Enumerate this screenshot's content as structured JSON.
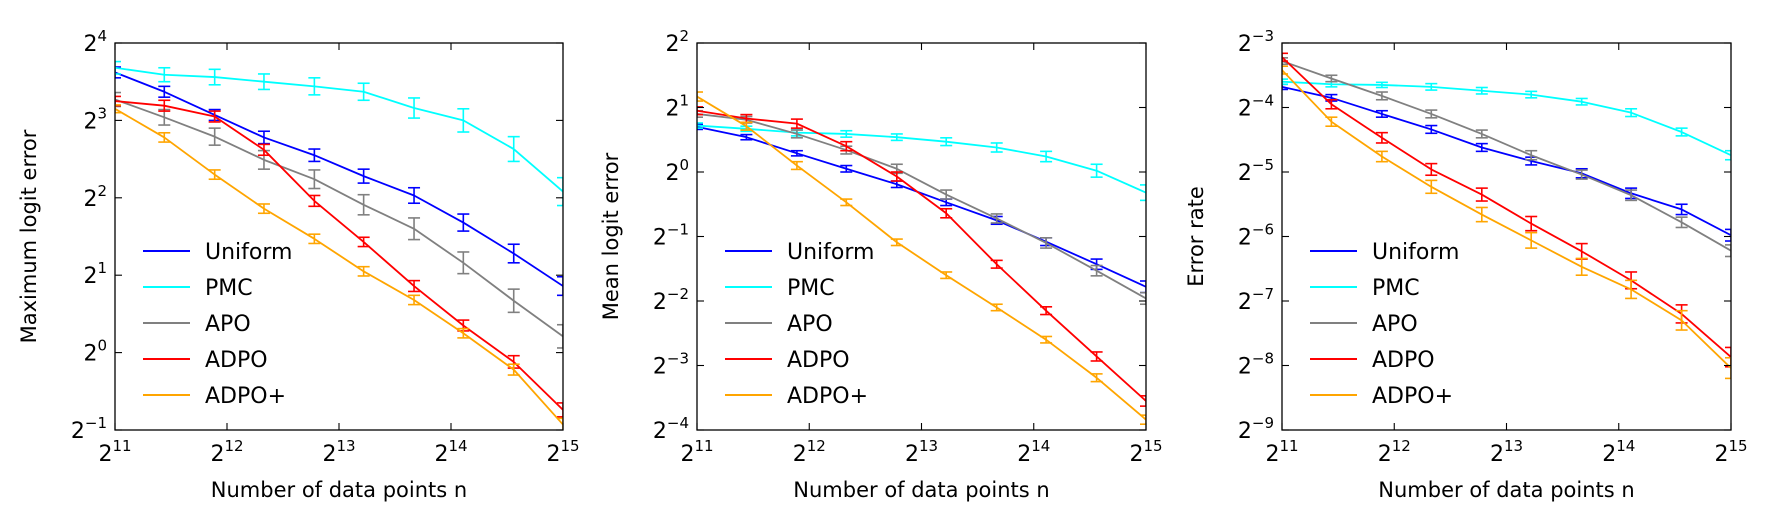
{
  "chart_data": [
    {
      "type": "line",
      "ylabel": "Maximum logit error",
      "xlabel": "Number of data points n",
      "x_scale": "log2",
      "y_scale": "log2",
      "xlim": [
        11,
        15
      ],
      "ylim": [
        -1,
        4
      ],
      "x_ticks": [
        11,
        12,
        13,
        14,
        15
      ],
      "y_ticks": [
        -1,
        0,
        1,
        2,
        3,
        4
      ],
      "x": [
        11.0,
        11.44,
        11.89,
        12.33,
        12.78,
        13.22,
        13.67,
        14.11,
        14.56,
        15.0
      ],
      "legend_position": "lower-left",
      "series": [
        {
          "name": "Uniform",
          "color": "#0000ff",
          "values": [
            3.62,
            3.37,
            3.07,
            2.78,
            2.55,
            2.28,
            2.03,
            1.68,
            1.28,
            0.86
          ],
          "err": [
            0.07,
            0.07,
            0.07,
            0.08,
            0.08,
            0.09,
            0.1,
            0.11,
            0.12,
            0.12
          ]
        },
        {
          "name": "PMC",
          "color": "#00ffff",
          "values": [
            3.68,
            3.59,
            3.56,
            3.5,
            3.44,
            3.37,
            3.16,
            3.0,
            2.63,
            2.08
          ],
          "err": [
            0.08,
            0.09,
            0.1,
            0.1,
            0.11,
            0.11,
            0.13,
            0.15,
            0.16,
            0.18
          ]
        },
        {
          "name": "APO",
          "color": "#808080",
          "values": [
            3.27,
            3.04,
            2.79,
            2.49,
            2.24,
            1.91,
            1.6,
            1.16,
            0.67,
            0.21
          ],
          "err": [
            0.09,
            0.1,
            0.11,
            0.12,
            0.12,
            0.13,
            0.14,
            0.14,
            0.15,
            0.15
          ]
        },
        {
          "name": "ADPO",
          "color": "#ff0000",
          "values": [
            3.25,
            3.19,
            3.05,
            2.62,
            1.96,
            1.43,
            0.86,
            0.35,
            -0.12,
            -0.74
          ],
          "err": [
            0.06,
            0.07,
            0.07,
            0.07,
            0.07,
            0.06,
            0.07,
            0.07,
            0.08,
            0.09
          ]
        },
        {
          "name": "ADPO+",
          "color": "#ffa500",
          "values": [
            3.15,
            2.78,
            2.3,
            1.86,
            1.47,
            1.05,
            0.68,
            0.25,
            -0.22,
            -0.93
          ],
          "err": [
            0.05,
            0.06,
            0.06,
            0.06,
            0.06,
            0.06,
            0.06,
            0.06,
            0.07,
            0.08
          ]
        }
      ]
    },
    {
      "type": "line",
      "ylabel": "Mean logit error",
      "xlabel": "Number of data points n",
      "x_scale": "log2",
      "y_scale": "log2",
      "xlim": [
        11,
        15
      ],
      "ylim": [
        -4,
        2
      ],
      "x_ticks": [
        11,
        12,
        13,
        14,
        15
      ],
      "y_ticks": [
        -4,
        -3,
        -2,
        -1,
        0,
        1,
        2
      ],
      "x": [
        11.0,
        11.44,
        11.89,
        12.33,
        12.78,
        13.22,
        13.67,
        14.11,
        14.56,
        15.0
      ],
      "legend_position": "lower-left",
      "series": [
        {
          "name": "Uniform",
          "color": "#0000ff",
          "values": [
            0.7,
            0.54,
            0.29,
            0.05,
            -0.19,
            -0.47,
            -0.75,
            -1.08,
            -1.43,
            -1.78
          ],
          "err": [
            0.04,
            0.04,
            0.04,
            0.05,
            0.05,
            0.05,
            0.06,
            0.06,
            0.08,
            0.09
          ]
        },
        {
          "name": "PMC",
          "color": "#00ffff",
          "values": [
            0.72,
            0.67,
            0.61,
            0.59,
            0.54,
            0.47,
            0.38,
            0.24,
            0.02,
            -0.32
          ],
          "err": [
            0.04,
            0.04,
            0.05,
            0.05,
            0.05,
            0.06,
            0.07,
            0.08,
            0.1,
            0.12
          ]
        },
        {
          "name": "APO",
          "color": "#808080",
          "values": [
            0.9,
            0.81,
            0.59,
            0.34,
            0.05,
            -0.35,
            -0.72,
            -1.1,
            -1.53,
            -1.96
          ],
          "err": [
            0.05,
            0.05,
            0.06,
            0.06,
            0.07,
            0.07,
            0.07,
            0.08,
            0.08,
            0.09
          ]
        },
        {
          "name": "ADPO",
          "color": "#ff0000",
          "values": [
            0.95,
            0.83,
            0.75,
            0.4,
            -0.07,
            -0.64,
            -1.43,
            -2.15,
            -2.86,
            -3.55
          ],
          "err": [
            0.06,
            0.06,
            0.07,
            0.07,
            0.07,
            0.07,
            0.06,
            0.06,
            0.07,
            0.08
          ]
        },
        {
          "name": "ADPO+",
          "color": "#ffa500",
          "values": [
            1.17,
            0.71,
            0.1,
            -0.47,
            -1.09,
            -1.6,
            -2.1,
            -2.6,
            -3.19,
            -3.84
          ],
          "err": [
            0.07,
            0.06,
            0.06,
            0.05,
            0.05,
            0.05,
            0.05,
            0.05,
            0.06,
            0.07
          ]
        }
      ]
    },
    {
      "type": "line",
      "ylabel": "Error rate",
      "xlabel": "Number of data points n",
      "x_scale": "log2",
      "y_scale": "log2",
      "xlim": [
        11,
        15
      ],
      "ylim": [
        -9,
        -3
      ],
      "x_ticks": [
        11,
        12,
        13,
        14,
        15
      ],
      "y_ticks": [
        -9,
        -8,
        -7,
        -6,
        -5,
        -4,
        -3
      ],
      "x": [
        11.0,
        11.44,
        11.89,
        12.33,
        12.78,
        13.22,
        13.67,
        14.11,
        14.56,
        15.0
      ],
      "legend_position": "lower-left",
      "series": [
        {
          "name": "Uniform",
          "color": "#0000ff",
          "values": [
            -3.68,
            -3.85,
            -4.1,
            -4.34,
            -4.62,
            -4.83,
            -5.02,
            -5.33,
            -5.58,
            -5.98
          ],
          "err": [
            0.04,
            0.05,
            0.05,
            0.06,
            0.06,
            0.06,
            0.07,
            0.08,
            0.08,
            0.09
          ]
        },
        {
          "name": "PMC",
          "color": "#00ffff",
          "values": [
            -3.6,
            -3.64,
            -3.65,
            -3.68,
            -3.74,
            -3.8,
            -3.91,
            -4.08,
            -4.38,
            -4.74
          ],
          "err": [
            0.04,
            0.04,
            0.04,
            0.05,
            0.05,
            0.05,
            0.05,
            0.06,
            0.06,
            0.07
          ]
        },
        {
          "name": "APO",
          "color": "#808080",
          "values": [
            -3.28,
            -3.55,
            -3.82,
            -4.1,
            -4.41,
            -4.74,
            -5.04,
            -5.36,
            -5.78,
            -6.22
          ],
          "err": [
            0.05,
            0.05,
            0.06,
            0.06,
            0.06,
            0.07,
            0.07,
            0.08,
            0.08,
            0.09
          ]
        },
        {
          "name": "ADPO",
          "color": "#ff0000",
          "values": [
            -3.22,
            -3.95,
            -4.47,
            -4.96,
            -5.35,
            -5.8,
            -6.23,
            -6.68,
            -7.2,
            -7.87
          ],
          "err": [
            0.06,
            0.07,
            0.08,
            0.09,
            0.1,
            0.11,
            0.12,
            0.13,
            0.14,
            0.15
          ]
        },
        {
          "name": "ADPO+",
          "color": "#ffa500",
          "values": [
            -3.42,
            -4.22,
            -4.76,
            -5.23,
            -5.66,
            -6.06,
            -6.47,
            -6.82,
            -7.3,
            -8.04
          ],
          "err": [
            0.06,
            0.07,
            0.08,
            0.1,
            0.11,
            0.12,
            0.13,
            0.14,
            0.15,
            0.16
          ]
        }
      ]
    }
  ]
}
